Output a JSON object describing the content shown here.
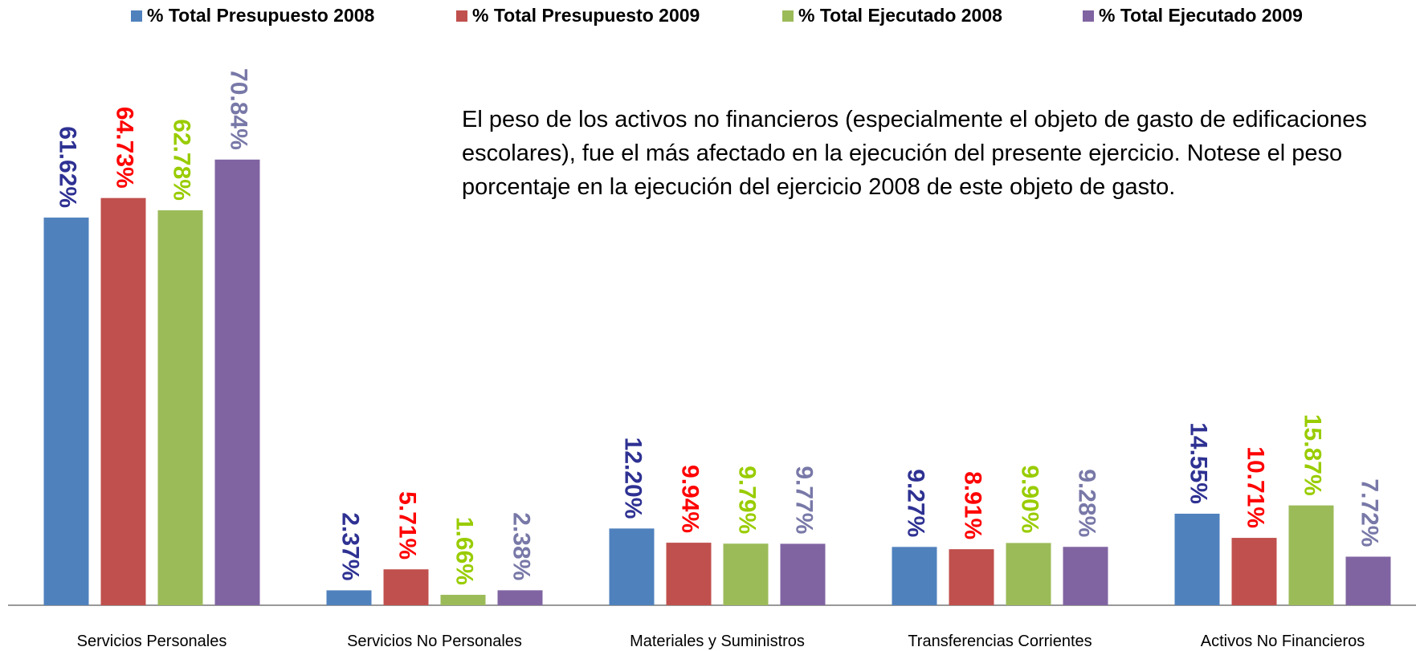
{
  "chart_data": {
    "type": "bar",
    "annotation": "El peso de los activos no financieros (especialmente  el objeto de gasto de edificaciones escolares), fue el más afectado en la ejecución del presente ejercicio. Notese el peso porcentaje en la ejecución  del ejercicio 2008 de este objeto de gasto.",
    "categories": [
      "Servicios Personales",
      "Servicios No Personales",
      "Materiales y Suministros",
      "Transferencias Corrientes",
      "Activos No Financieros"
    ],
    "series": [
      {
        "name": "% Total Presupuesto 2008",
        "color": "#4f81bd",
        "label_color": "#2e3192",
        "values": [
          61.62,
          2.37,
          12.2,
          9.27,
          14.55
        ],
        "value_labels": [
          "61.62%",
          "2.37%",
          "12.20%",
          "9.27%",
          "14.55%"
        ]
      },
      {
        "name": "% Total Presupuesto 2009",
        "color": "#c0504d",
        "label_color": "#ff0000",
        "values": [
          64.73,
          5.71,
          9.94,
          8.91,
          10.71
        ],
        "value_labels": [
          "64.73%",
          "5.71%",
          "9.94%",
          "8.91%",
          "10.71%"
        ]
      },
      {
        "name": "% Total Ejecutado 2008",
        "color": "#9bbb59",
        "label_color": "#99cc00",
        "values": [
          62.78,
          1.66,
          9.79,
          9.9,
          15.87
        ],
        "value_labels": [
          "62.78%",
          "1.66%",
          "9.79%",
          "9.90%",
          "15.87%"
        ]
      },
      {
        "name": "% Total Ejecutado 2009",
        "color": "#8064a2",
        "label_color": "#7878a8",
        "values": [
          70.84,
          2.38,
          9.77,
          9.28,
          7.72
        ],
        "value_labels": [
          "70.84%",
          "2.38%",
          "9.77%",
          "9.28%",
          "7.72%"
        ]
      }
    ],
    "ylim": [
      0,
      80
    ]
  }
}
